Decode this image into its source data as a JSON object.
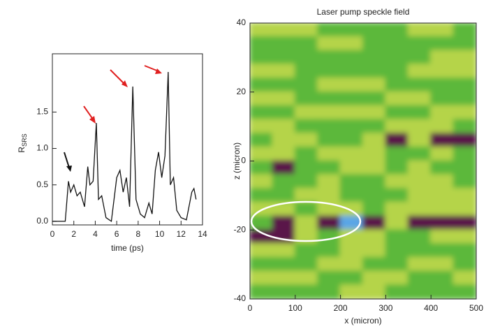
{
  "chart_data": [
    {
      "type": "line",
      "xlabel": "time (ps)",
      "ylabel": "R",
      "ylabel_subscript": "SRS",
      "xlim": [
        0,
        14
      ],
      "ylim": [
        -0.05,
        2.3
      ],
      "xticks": [
        0,
        2,
        4,
        6,
        8,
        10,
        12,
        14
      ],
      "yticks": [
        {
          "value": 0,
          "label": "0.0"
        },
        0.5,
        {
          "value": 1,
          "label": "1.0"
        },
        1.5
      ],
      "series": [
        {
          "color": "#111111",
          "x": [
            0,
            1.2,
            1.5,
            1.7,
            2.0,
            2.3,
            2.6,
            3.0,
            3.3,
            3.5,
            3.8,
            4.1,
            4.3,
            4.6,
            5.0,
            5.5,
            6.0,
            6.3,
            6.6,
            6.9,
            7.2,
            7.5,
            7.8,
            8.2,
            8.6,
            9.0,
            9.3,
            9.6,
            9.9,
            10.2,
            10.5,
            10.8,
            11.0,
            11.3,
            11.6,
            12.0,
            12.5,
            13.0,
            13.2,
            13.4
          ],
          "values": [
            0,
            0,
            0.55,
            0.4,
            0.5,
            0.35,
            0.4,
            0.2,
            0.75,
            0.5,
            0.55,
            1.35,
            0.3,
            0.35,
            0.05,
            0,
            0.6,
            0.7,
            0.4,
            0.6,
            0.2,
            1.85,
            0.3,
            0.1,
            0.05,
            0.25,
            0.1,
            0.7,
            0.95,
            0.6,
            0.9,
            2.05,
            0.5,
            0.6,
            0.15,
            0.05,
            0.02,
            0.4,
            0.45,
            0.3
          ]
        }
      ]
    },
    {
      "type": "heatmap",
      "title": "Laser pump speckle field",
      "xlabel": "x (micron)",
      "ylabel": "z (micron)",
      "xlim": [
        0,
        500
      ],
      "ylim": [
        -40,
        40
      ],
      "xticks": [
        0,
        100,
        200,
        300,
        400,
        500
      ],
      "yticks": [
        -40,
        -20,
        0,
        20,
        40
      ],
      "colors": [
        "#5cb83a",
        "#b5d44a",
        "#5a1848",
        "#5aa6e6"
      ],
      "z": [
        [
          1,
          1,
          1,
          0,
          0,
          0,
          0,
          1,
          1,
          0
        ],
        [
          0,
          0,
          0,
          1,
          1,
          0,
          0,
          0,
          0,
          0
        ],
        [
          0,
          0,
          0,
          0,
          0,
          0,
          0,
          0,
          1,
          1
        ],
        [
          1,
          1,
          0,
          0,
          0,
          0,
          0,
          1,
          1,
          1
        ],
        [
          0,
          0,
          0,
          1,
          1,
          1,
          0,
          0,
          0,
          0
        ],
        [
          1,
          1,
          0,
          0,
          0,
          0,
          1,
          1,
          0,
          0
        ],
        [
          0,
          0,
          1,
          1,
          1,
          1,
          0,
          0,
          1,
          1
        ],
        [
          1,
          1,
          0,
          0,
          0,
          0,
          1,
          1,
          1,
          0
        ],
        [
          0,
          1,
          1,
          0,
          0,
          1,
          2,
          1,
          2,
          2
        ],
        [
          1,
          1,
          0,
          1,
          1,
          1,
          0,
          0,
          1,
          0
        ],
        [
          0,
          2,
          0,
          0,
          1,
          1,
          0,
          1,
          0,
          0
        ],
        [
          1,
          0,
          0,
          1,
          0,
          0,
          1,
          1,
          1,
          0
        ],
        [
          0,
          0,
          1,
          1,
          0,
          0,
          0,
          1,
          1,
          1
        ],
        [
          1,
          1,
          0,
          1,
          1,
          0,
          1,
          1,
          1,
          1
        ],
        [
          0,
          2,
          1,
          2,
          3,
          2,
          1,
          2,
          2,
          2
        ],
        [
          2,
          2,
          1,
          0,
          1,
          1,
          0,
          0,
          1,
          1
        ],
        [
          1,
          1,
          0,
          0,
          1,
          1,
          0,
          0,
          0,
          0
        ],
        [
          0,
          0,
          0,
          1,
          1,
          0,
          0,
          1,
          1,
          0
        ],
        [
          1,
          1,
          1,
          0,
          0,
          1,
          1,
          0,
          0,
          1
        ],
        [
          0,
          0,
          0,
          0,
          1,
          1,
          0,
          0,
          0,
          0
        ]
      ]
    }
  ]
}
